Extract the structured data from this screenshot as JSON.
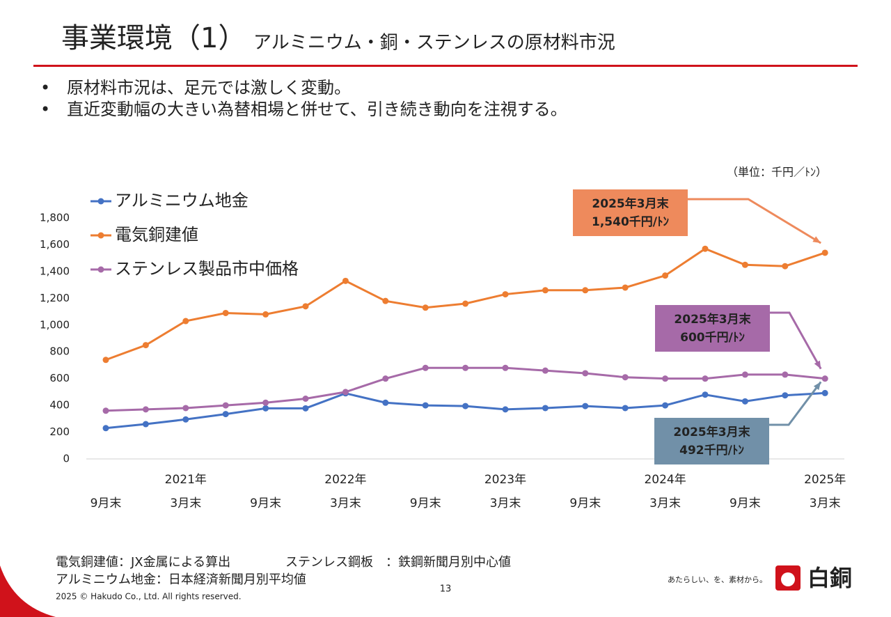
{
  "header": {
    "title": "事業環境（1）",
    "subtitle": "アルミニウム・銅・ステンレスの原材料市況"
  },
  "bullets": [
    "原材料市況は、足元では激しく変動。",
    "直近変動幅の大きい為替相場と併せて、引き続き動向を注視する。"
  ],
  "chart_data": {
    "type": "line",
    "unit_label": "（単位：千円／ﾄﾝ）",
    "categories": [
      "9月末",
      null,
      "3月末",
      null,
      "9月末",
      null,
      "3月末",
      null,
      "9月末",
      null,
      "3月末",
      null,
      "9月末",
      null,
      "3月末",
      null,
      "9月末",
      null,
      "3月末"
    ],
    "category_years": [
      null,
      null,
      "2021年",
      null,
      null,
      null,
      "2022年",
      null,
      null,
      null,
      "2023年",
      null,
      null,
      null,
      "2024年",
      null,
      null,
      null,
      "2025年"
    ],
    "ylim": [
      0,
      1800
    ],
    "yticks": [
      0,
      200,
      400,
      600,
      800,
      {
        "value": 1000,
        "label": "1,000"
      },
      {
        "value": 1200,
        "label": "1,200"
      },
      {
        "value": 1400,
        "label": "1,400"
      },
      {
        "value": 1600,
        "label": "1,600"
      },
      {
        "value": 1800,
        "label": "1,800"
      }
    ],
    "grid": false,
    "legend": "upper left",
    "series": [
      {
        "name": "アルミニウム地金",
        "color": "#4472c4",
        "values": [
          230,
          260,
          295,
          335,
          378,
          378,
          490,
          420,
          400,
          395,
          370,
          380,
          395,
          380,
          400,
          480,
          430,
          475,
          492
        ]
      },
      {
        "name": "電気銅建値",
        "color": "#ed7d31",
        "values": [
          740,
          850,
          1030,
          1090,
          1080,
          1140,
          1330,
          1180,
          1130,
          1160,
          1230,
          1260,
          1260,
          1280,
          1370,
          1570,
          1450,
          1440,
          1540
        ]
      },
      {
        "name": "ステンレス製品市中価格",
        "color": "#a66aa8",
        "values": [
          360,
          370,
          380,
          400,
          420,
          450,
          500,
          600,
          680,
          680,
          680,
          660,
          640,
          610,
          600,
          600,
          630,
          630,
          600
        ]
      }
    ],
    "annotations": [
      {
        "series": 1,
        "lines": [
          "2025年3月末",
          "1,540千円/ﾄﾝ"
        ],
        "color": "#ee8a5c"
      },
      {
        "series": 2,
        "lines": [
          "2025年3月末",
          "600千円/ﾄﾝ"
        ],
        "color": "#a66aa8"
      },
      {
        "series": 0,
        "lines": [
          "2025年3月末",
          "492千円/ﾄﾝ"
        ],
        "color": "#7190a8"
      }
    ]
  },
  "footer": {
    "notes": [
      "電気銅建値：JX金属による算出",
      "ステンレス鋼板　：鉄鋼新聞月別中心値",
      "アルミニウム地金：日本経済新聞月別平均値"
    ],
    "copyright": "2025 © Hakudo Co., Ltd. All rights reserved.",
    "page": "13",
    "tagline": "あたらしい、を、素材から。",
    "logo": "白銅"
  }
}
